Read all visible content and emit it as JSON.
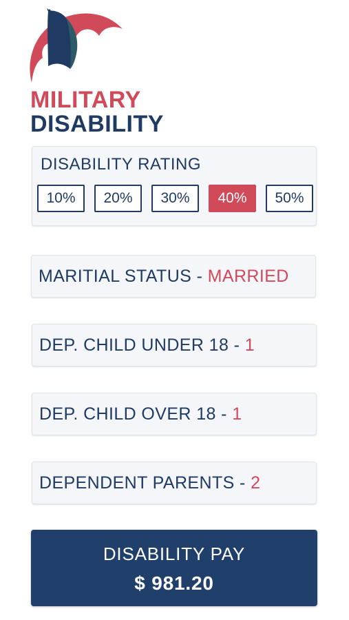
{
  "brand": {
    "line1": "MILITARY",
    "line2": "DISABILITY",
    "logo_icon": "umbrella-icon",
    "accent_color": "#d04a5a",
    "primary_color": "#1f3b63"
  },
  "rating": {
    "title": "DISABILITY RATING",
    "options": [
      "10%",
      "20%",
      "30%",
      "40%",
      "50%"
    ],
    "selected": "40%"
  },
  "marital": {
    "label": "MARITIAL STATUS - ",
    "value": "MARRIED"
  },
  "child_under_18": {
    "label": "DEP. CHILD UNDER 18 - ",
    "value": "1"
  },
  "child_over_18": {
    "label": "DEP. CHILD OVER 18 - ",
    "value": "1"
  },
  "dependent_parents": {
    "label": "DEPENDENT PARENTS - ",
    "value": "2"
  },
  "pay": {
    "title": "DISABILITY PAY",
    "amount": "$ 981.20"
  }
}
